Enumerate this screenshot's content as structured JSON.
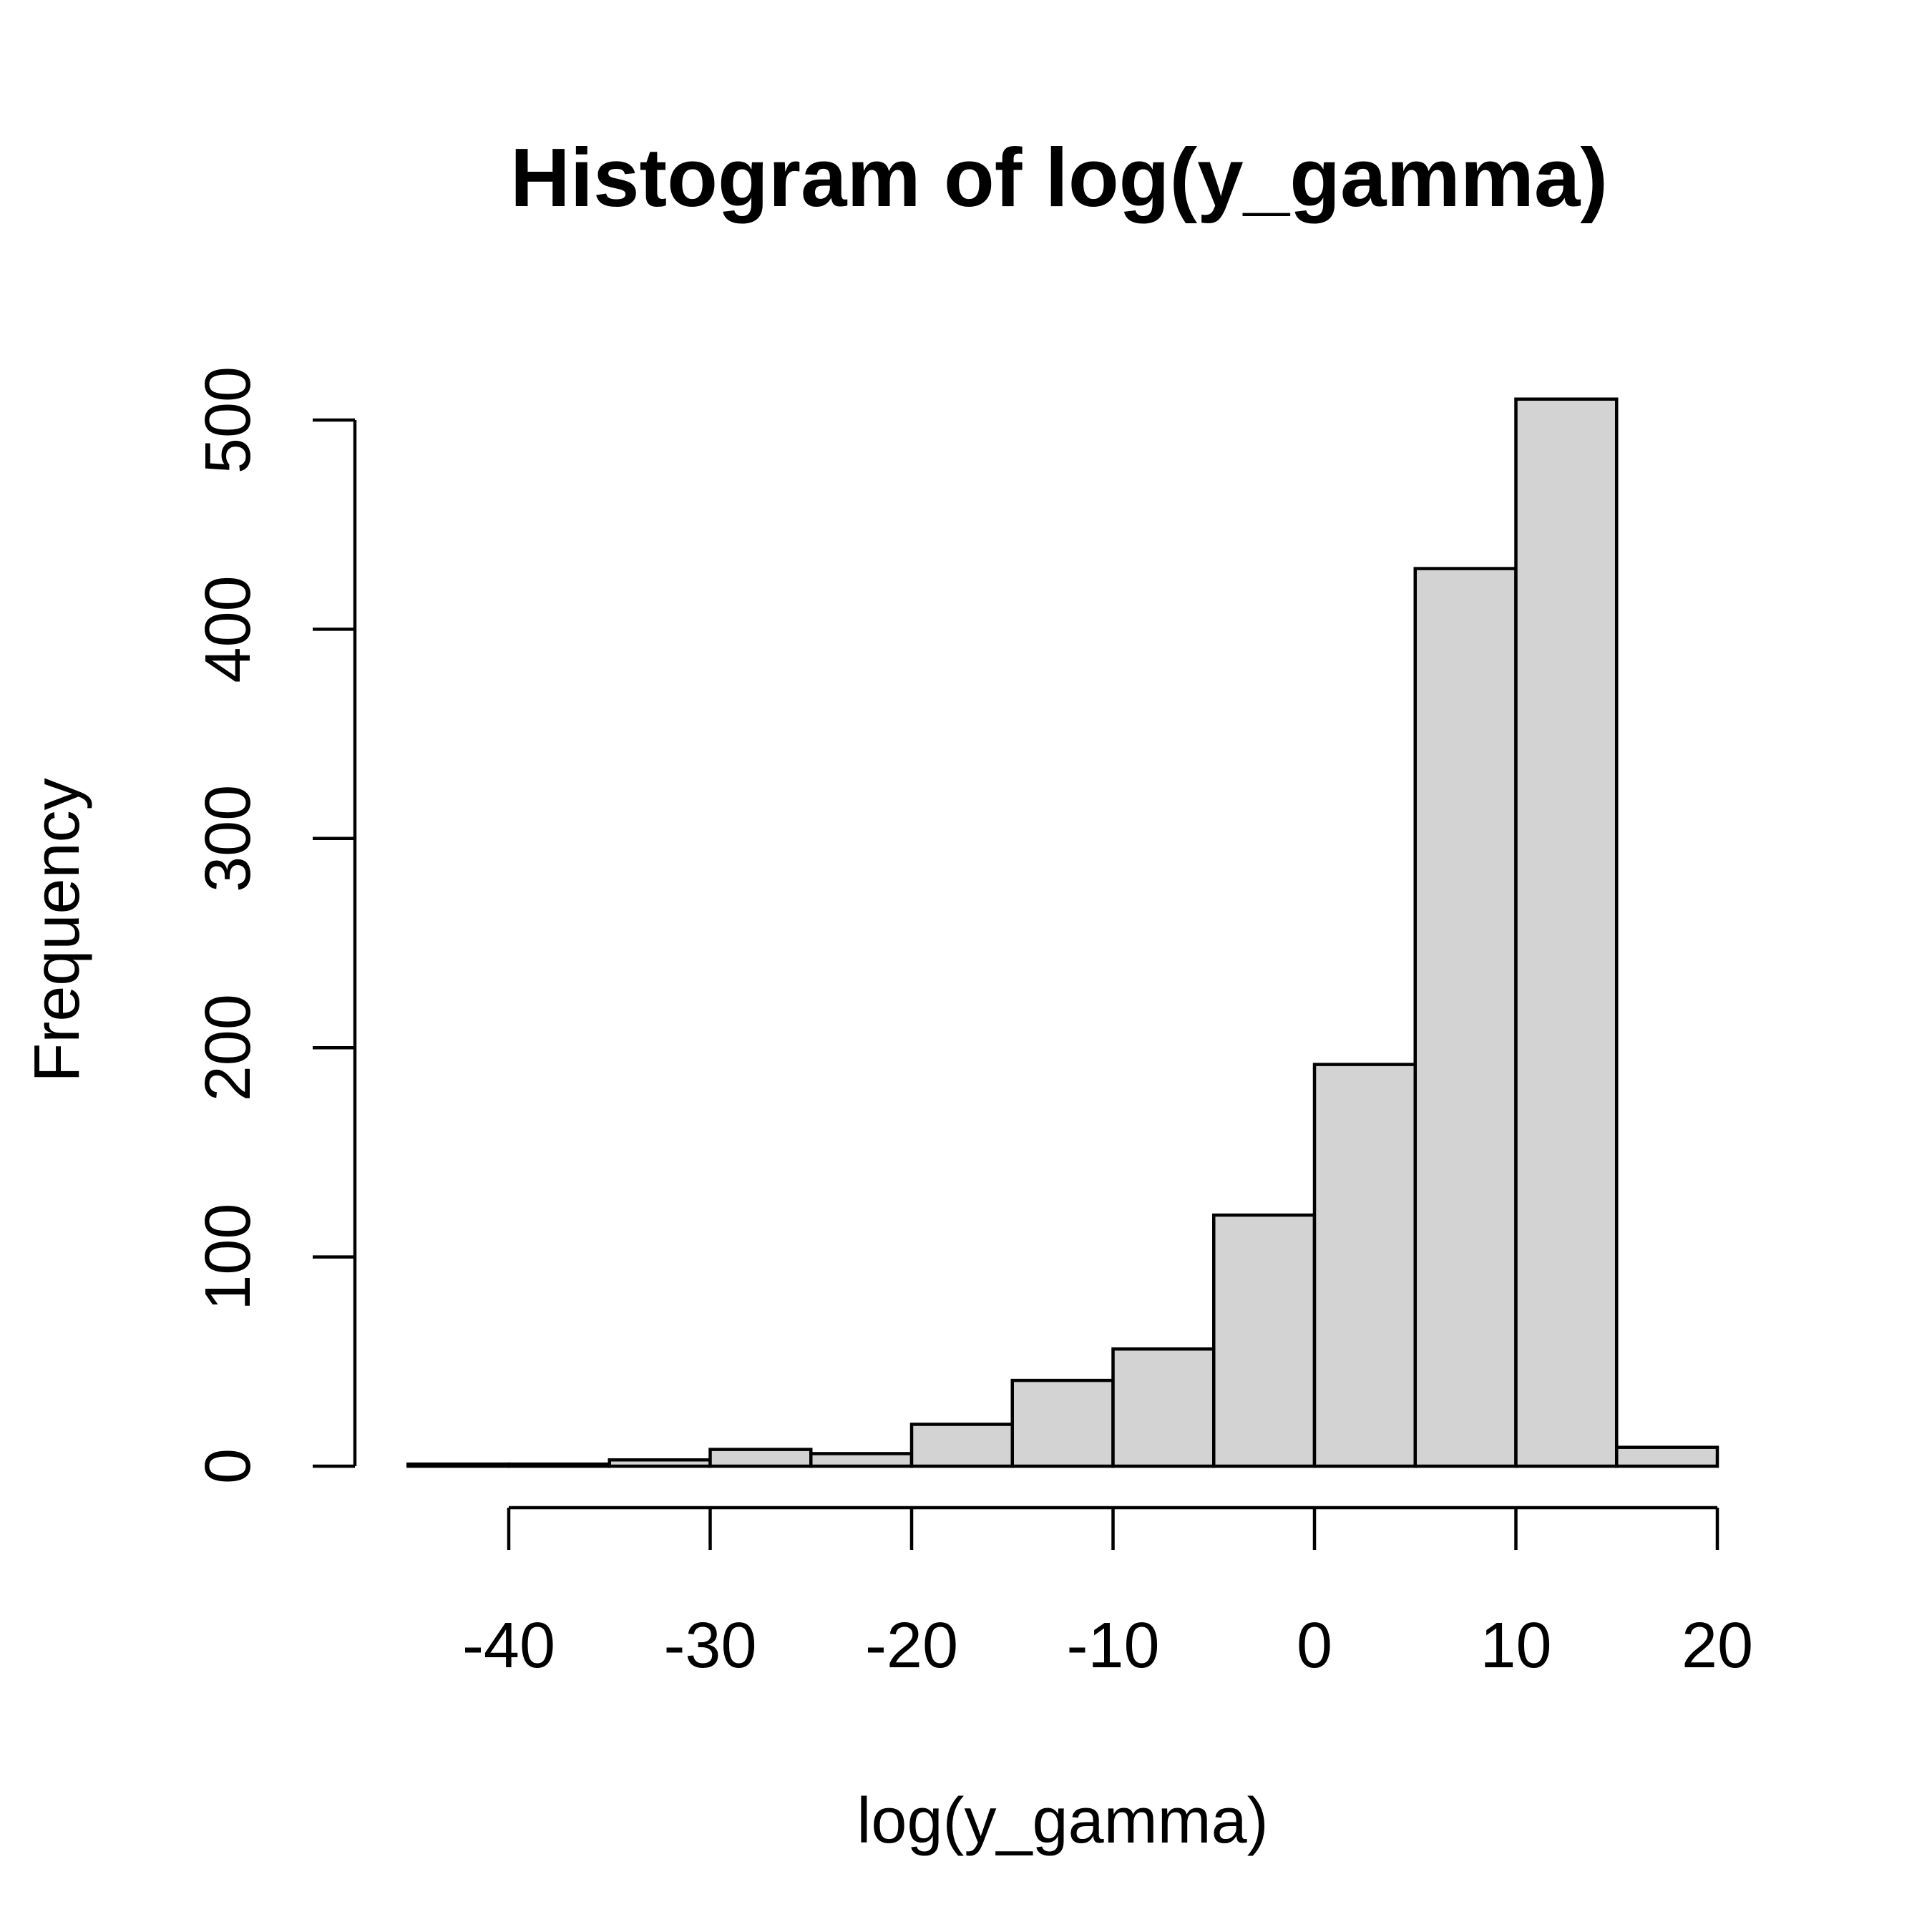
{
  "chart_data": {
    "type": "bar",
    "title": "Histogram of log(y_gamma)",
    "xlabel": "log(y_gamma)",
    "ylabel": "Frequency",
    "bins": [
      {
        "x0": -45,
        "x1": -40,
        "count": 1
      },
      {
        "x0": -40,
        "x1": -35,
        "count": 1
      },
      {
        "x0": -35,
        "x1": -30,
        "count": 3
      },
      {
        "x0": -30,
        "x1": -25,
        "count": 8
      },
      {
        "x0": -25,
        "x1": -20,
        "count": 6
      },
      {
        "x0": -20,
        "x1": -15,
        "count": 20
      },
      {
        "x0": -15,
        "x1": -10,
        "count": 41
      },
      {
        "x0": -10,
        "x1": -5,
        "count": 56
      },
      {
        "x0": -5,
        "x1": 0,
        "count": 120
      },
      {
        "x0": 0,
        "x1": 5,
        "count": 192
      },
      {
        "x0": 5,
        "x1": 10,
        "count": 429
      },
      {
        "x0": 10,
        "x1": 15,
        "count": 510
      },
      {
        "x0": 15,
        "x1": 20,
        "count": 9
      }
    ],
    "x_ticks": [
      -40,
      -30,
      -20,
      -10,
      0,
      10,
      20
    ],
    "x_tick_labels": [
      "-40",
      "-30",
      "-20",
      "-10",
      "0",
      "10",
      "20"
    ],
    "y_ticks": [
      0,
      100,
      200,
      300,
      400,
      500
    ],
    "y_tick_labels": [
      "0",
      "100",
      "200",
      "300",
      "400",
      "500"
    ],
    "xlim": [
      -45,
      20
    ],
    "ylim": [
      0,
      510
    ],
    "grid": false,
    "colors": {
      "bar_fill": "#d3d3d3",
      "bar_stroke": "#000000"
    }
  }
}
